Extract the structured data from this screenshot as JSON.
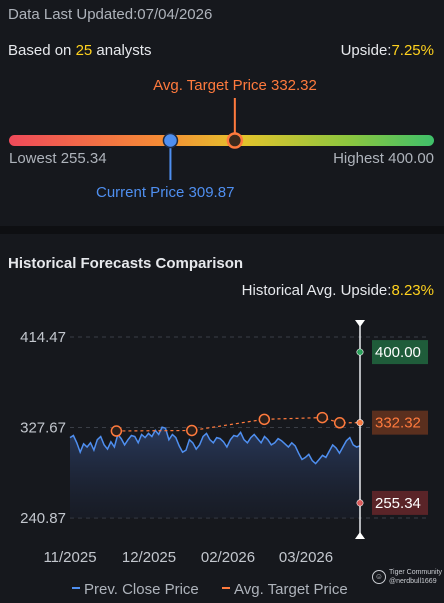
{
  "header": {
    "updated_label": "Data Last Updated:",
    "updated_date": "07/04/2026"
  },
  "summary": {
    "based_prefix": "Based on",
    "analyst_count": "25",
    "based_suffix": "analysts",
    "upside_label": "Upside:",
    "upside_value": "7.25%"
  },
  "target_bar": {
    "avg_target_label": "Avg. Target Price 332.32",
    "lowest_label": "Lowest 255.34",
    "highest_label": "Highest 400.00",
    "current_label": "Current Price 309.87",
    "lowest": 255.34,
    "highest": 400.0,
    "current": 309.87,
    "avg_target": 332.32,
    "colors": {
      "current": "#4f8ff0",
      "target": "#ff7a3d"
    }
  },
  "historical": {
    "title": "Historical Forecasts Comparison",
    "upside_label": "Historical Avg. Upside:",
    "upside_value": "8.23%"
  },
  "chart_data": {
    "type": "line",
    "y_ticks": [
      "414.47",
      "327.67",
      "240.87"
    ],
    "ylim": [
      240.87,
      414.47
    ],
    "x_ticks": [
      "11/2025",
      "12/2025",
      "02/2026",
      "03/2026"
    ],
    "series": [
      {
        "name": "Prev. Close Price",
        "color": "#4f8ff0",
        "values": [
          318,
          320,
          313,
          304,
          312,
          309,
          313,
          306,
          316,
          319,
          311,
          307,
          314,
          309,
          321,
          317,
          311,
          316,
          320,
          319,
          313,
          321,
          318,
          322,
          319,
          325,
          321,
          328,
          327,
          316,
          321,
          318,
          310,
          304,
          306,
          316,
          313,
          307,
          311,
          319,
          322,
          316,
          313,
          318,
          317,
          314,
          309,
          316,
          320,
          319,
          323,
          316,
          313,
          318,
          321,
          317,
          313,
          319,
          316,
          311,
          313,
          317,
          315,
          312,
          309,
          313,
          310,
          303,
          297,
          299,
          302,
          296,
          293,
          297,
          301,
          299,
          305,
          311,
          308,
          303,
          309,
          315,
          318,
          311,
          309,
          310
        ]
      },
      {
        "name": "Avg. Target Price",
        "color": "#ff7a3d",
        "points": [
          {
            "x": 0.16,
            "y": 324.3
          },
          {
            "x": 0.42,
            "y": 324.8
          },
          {
            "x": 0.67,
            "y": 335.5
          },
          {
            "x": 0.87,
            "y": 337.2
          },
          {
            "x": 0.93,
            "y": 332.2
          },
          {
            "x": 1.0,
            "y": 332.32
          }
        ]
      }
    ],
    "annotations": [
      {
        "label": "400.00",
        "value": 400.0,
        "color": "#1f5c3a",
        "dot": "#27a35a"
      },
      {
        "label": "332.32",
        "value": 332.32,
        "color": "#5a2f1e",
        "dot": "#ff7a3d"
      },
      {
        "label": "255.34",
        "value": 255.34,
        "color": "#5a2428",
        "dot": "#e05a5a"
      }
    ],
    "legend": [
      "Prev. Close Price",
      "Avg. Target Price"
    ],
    "legend_position": "bottom"
  },
  "watermark": {
    "brand": "Tiger Community",
    "user": "@nerdbull1669"
  }
}
